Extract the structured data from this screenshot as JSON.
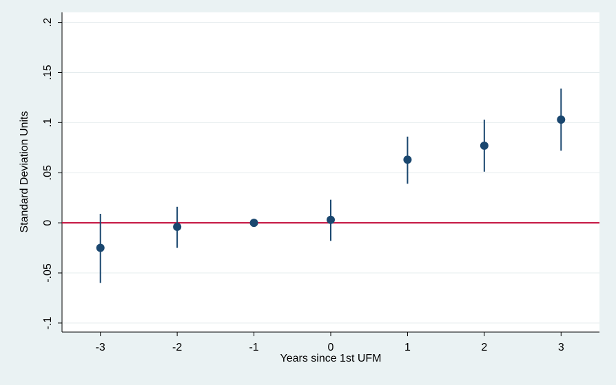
{
  "chart_data": {
    "type": "scatter",
    "x_label": "Years since 1st UFM",
    "y_label": "Standard Deviation Units",
    "x": [
      -3,
      -2,
      -1,
      0,
      1,
      2,
      3
    ],
    "series": [
      {
        "color": "#1a476f",
        "values": [
          -0.025,
          -0.004,
          0,
          0.003,
          0.063,
          0.077,
          0.103
        ],
        "lower": [
          -0.06,
          -0.025,
          null,
          -0.018,
          0.039,
          0.051,
          0.072
        ],
        "upper": [
          0.009,
          0.016,
          null,
          0.023,
          0.086,
          0.103,
          0.134
        ]
      }
    ],
    "xlim": [
      -3.5,
      3.5
    ],
    "ylim": [
      -0.109,
      0.21
    ],
    "xticks": [
      -3,
      -2,
      -1,
      0,
      1,
      2,
      3
    ],
    "yticks": [
      {
        "value": -0.1,
        "label": "-.1"
      },
      {
        "value": -0.05,
        "label": "-.05"
      },
      0,
      {
        "value": 0.05,
        "label": ".05"
      },
      {
        "value": 0.1,
        "label": ".1"
      },
      {
        "value": 0.15,
        "label": ".15"
      },
      {
        "value": 0.2,
        "label": ".2"
      }
    ],
    "grid": true,
    "hline": 0,
    "hline_color": "#c10534"
  }
}
